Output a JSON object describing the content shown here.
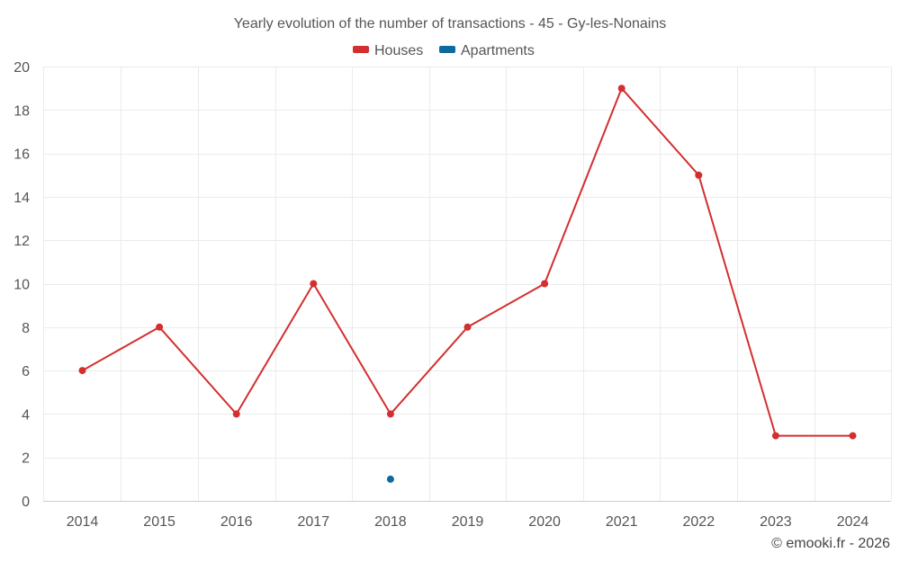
{
  "chart_data": {
    "type": "line",
    "title": "Yearly evolution of the number of transactions - 45 - Gy-les-Nonains",
    "categories": [
      "2014",
      "2015",
      "2016",
      "2017",
      "2018",
      "2019",
      "2020",
      "2021",
      "2022",
      "2023",
      "2024"
    ],
    "series": [
      {
        "name": "Houses",
        "color": "#d32f2f",
        "values": [
          6,
          8,
          4,
          10,
          4,
          8,
          10,
          19,
          15,
          3,
          3
        ]
      },
      {
        "name": "Apartments",
        "color": "#0d6aa0",
        "values": [
          null,
          null,
          null,
          null,
          1,
          null,
          null,
          null,
          null,
          null,
          null
        ]
      }
    ],
    "yticks": [
      "0",
      "2",
      "4",
      "6",
      "8",
      "10",
      "12",
      "14",
      "16",
      "18",
      "20"
    ],
    "ylim": [
      0,
      20
    ],
    "grid": true,
    "legend": "top-center"
  },
  "credit": "© emooki.fr - 2026"
}
